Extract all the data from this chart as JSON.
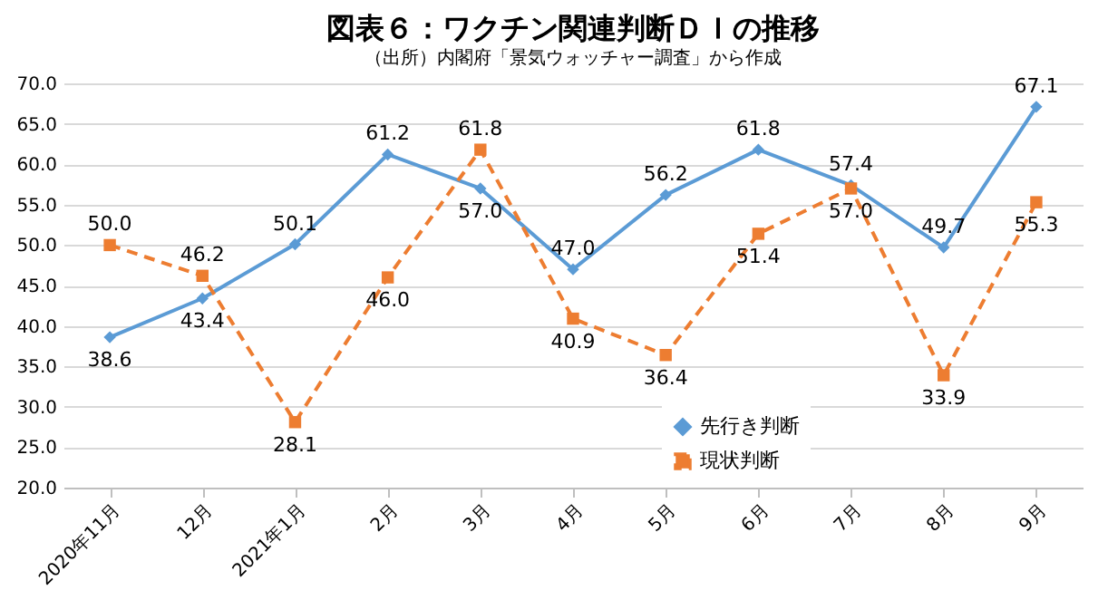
{
  "chart_data": {
    "type": "line",
    "title": "図表６：ワクチン関連判断ＤＩの推移",
    "categories": [
      "2020年11月",
      "12月",
      "2021年1月",
      "2月",
      "3月",
      "4月",
      "5月",
      "6月",
      "7月",
      "8月",
      "9月"
    ],
    "series": [
      {
        "name": "先行き判断",
        "color": "#5b9bd5",
        "marker": "diamond",
        "line_style": "solid",
        "values": [
          38.6,
          43.4,
          50.1,
          61.2,
          57.0,
          47.0,
          56.2,
          61.8,
          57.4,
          49.7,
          67.1
        ],
        "value_labels": [
          "38.6",
          "43.4",
          "50.1",
          "61.2",
          "57.0",
          "47.0",
          "56.2",
          "61.8",
          "57.4",
          "49.7",
          "67.1"
        ]
      },
      {
        "name": "現状判断",
        "color": "#ed7d31",
        "marker": "square",
        "line_style": "dashed",
        "values": [
          50.0,
          46.2,
          28.1,
          46.0,
          61.8,
          40.9,
          36.4,
          51.4,
          57.0,
          33.9,
          55.3
        ],
        "value_labels": [
          "50.0",
          "46.2",
          "28.1",
          "46.0",
          "61.8",
          "40.9",
          "36.4",
          "51.4",
          "57.0",
          "33.9",
          "55.3"
        ]
      }
    ],
    "ylim": [
      20,
      70
    ],
    "yticks": [
      {
        "value": 20,
        "label": "20.0"
      },
      {
        "value": 25,
        "label": "25.0"
      },
      {
        "value": 30,
        "label": "30.0"
      },
      {
        "value": 35,
        "label": "35.0"
      },
      {
        "value": 40,
        "label": "40.0"
      },
      {
        "value": 45,
        "label": "45.0"
      },
      {
        "value": 50,
        "label": "50.0"
      },
      {
        "value": 55,
        "label": "55.0"
      },
      {
        "value": 60,
        "label": "60.0"
      },
      {
        "value": 65,
        "label": "65.0"
      },
      {
        "value": 70,
        "label": "70.0"
      }
    ],
    "grid": "y",
    "legend": "bottom right",
    "annotations": [
      "（出所）内閣府「景気ウォッチャー調査」から作成"
    ]
  }
}
